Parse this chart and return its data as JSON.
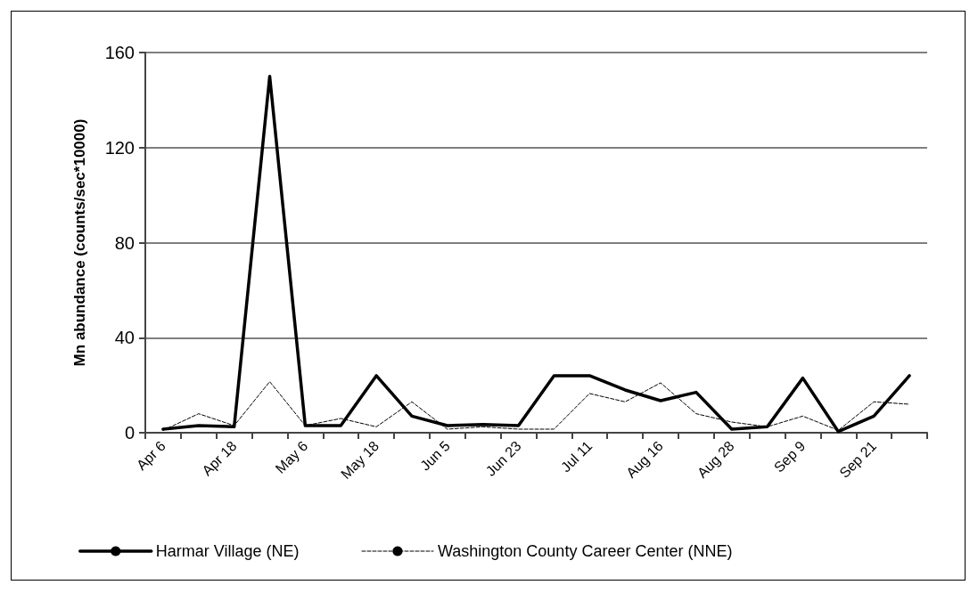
{
  "chart_data": {
    "type": "line",
    "ylabel": "Mn abundance (counts/sec*10000)",
    "categories": [
      "Apr 6",
      null,
      "Apr 18",
      null,
      "May 6",
      null,
      "May 18",
      null,
      "Jun 5",
      null,
      "Jun 23",
      null,
      "Jul 11",
      null,
      "Aug 16",
      null,
      "Aug 28",
      null,
      "Sep 9",
      null,
      "Sep 21",
      null
    ],
    "series": [
      {
        "name": "Harmar Village (NE)",
        "color": "#000000",
        "line_style": "solid",
        "values": [
          1.5,
          3,
          2.5,
          150,
          3,
          3,
          24,
          7,
          3,
          3.5,
          3,
          24,
          24,
          18,
          13.5,
          17,
          1.5,
          2.5,
          23,
          0.5,
          7,
          24
        ]
      },
      {
        "name": "Washington County Career Center (NNE)",
        "color": "#000000",
        "line_style": "dashed",
        "values": [
          1,
          8,
          3,
          21.5,
          3,
          6,
          2.5,
          13,
          1.5,
          2.5,
          1.5,
          1.5,
          16.5,
          13,
          21,
          8,
          4.5,
          2.5,
          7,
          1,
          13,
          12
        ]
      }
    ],
    "ylim": [
      0,
      160
    ],
    "yticks": [
      0,
      40,
      80,
      120,
      160
    ],
    "grid": "y",
    "legend": "bottom",
    "marker": "none"
  }
}
